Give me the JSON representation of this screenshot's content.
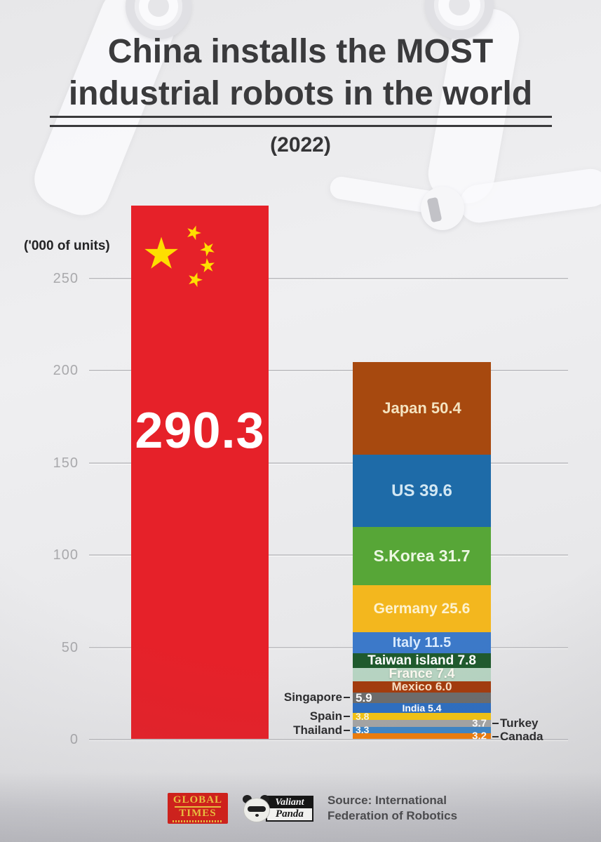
{
  "header": {
    "title_line1": "China installs the MOST",
    "title_line2": "industrial robots in the world",
    "subtitle": "(2022)"
  },
  "axis": {
    "unit_label": "('000 of units)",
    "ticks": [
      "250",
      "200",
      "150",
      "100",
      "50",
      "0"
    ]
  },
  "flag": {
    "star": "★",
    "star_color": "#fede00"
  },
  "chart_data": {
    "type": "bar",
    "title": "China installs the MOST industrial robots in the world (2022)",
    "ylabel": "'000 of units",
    "year": "2022",
    "ylim": [
      0,
      300
    ],
    "grid": true,
    "gridlines": [
      0,
      50,
      100,
      150,
      200,
      250
    ],
    "source": "International Federation of Robotics",
    "china": {
      "name": "China",
      "value": 290.3,
      "label": "290.3",
      "color": "#e62129"
    },
    "stack": [
      {
        "name": "Japan",
        "value": 50.4,
        "label": "Japan 50.4",
        "color": "#a7490f"
      },
      {
        "name": "US",
        "value": 39.6,
        "label": "US 39.6",
        "color": "#1e6ba8"
      },
      {
        "name": "S.Korea",
        "value": 31.7,
        "label": "S.Korea 31.7",
        "color": "#57a637"
      },
      {
        "name": "Germany",
        "value": 25.6,
        "label": "Germany 25.6",
        "color": "#f3b71e"
      },
      {
        "name": "Italy",
        "value": 11.5,
        "label": "Italy 11.5",
        "color": "#3c79c9"
      },
      {
        "name": "Taiwan island",
        "value": 7.8,
        "label": "Taiwan island 7.8",
        "color": "#1f5a2d"
      },
      {
        "name": "France",
        "value": 7.4,
        "label": "France 7.4",
        "color": "#b7d4c2"
      },
      {
        "name": "Mexico",
        "value": 6.0,
        "label": "Mexico 6.0",
        "color": "#a33b0d"
      },
      {
        "name": "Singapore",
        "value": 5.9,
        "value_label": "5.9",
        "color": "#6c6c6c",
        "label_side": "left"
      },
      {
        "name": "India",
        "value": 5.4,
        "label": "India 5.4",
        "color": "#2e6ec0"
      },
      {
        "name": "Spain",
        "value": 3.8,
        "value_label": "3.8",
        "color": "#f3c313",
        "label_side": "left"
      },
      {
        "name": "Turkey",
        "value": 3.7,
        "value_label": "3.7",
        "color": "#a5a5a5",
        "label_side": "right"
      },
      {
        "name": "Thailand",
        "value": 3.3,
        "value_label": "3.3",
        "color": "#3f86c6",
        "label_side": "left"
      },
      {
        "name": "Canada",
        "value": 3.2,
        "value_label": "3.2",
        "color": "#ee7d0c",
        "label_side": "right"
      }
    ]
  },
  "footer": {
    "globaltimes_line1": "GLOBAL",
    "globaltimes_line2": "TIMES",
    "panda_line1": "Valiant",
    "panda_line2": "Panda",
    "source_line1": "Source: International",
    "source_line2": "Federation of Robotics"
  }
}
